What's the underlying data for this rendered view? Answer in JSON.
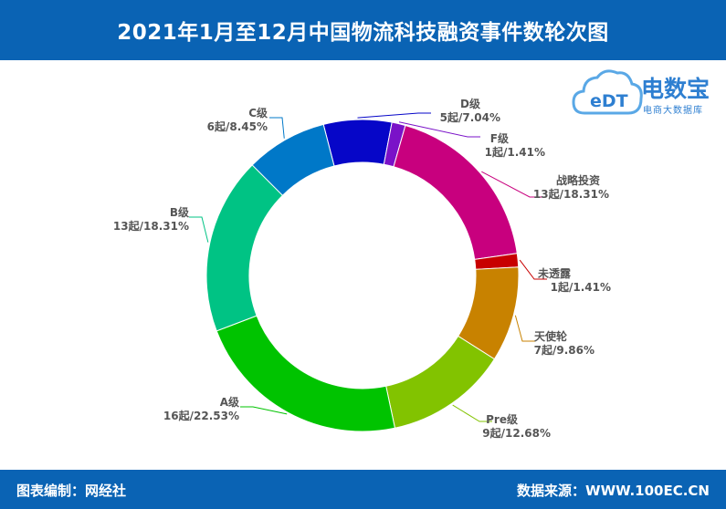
{
  "header": {
    "title": "2021年1月至12月中国物流科技融资事件数轮次图"
  },
  "footer": {
    "left": "图表编制：网经社",
    "right": "数据来源：WWW.100EC.CN"
  },
  "logo": {
    "mark": "eDT",
    "brand": "电数宝",
    "sub": "电商大数据库"
  },
  "chart_data": {
    "type": "pie",
    "style": "donut",
    "title": "2021年1月至12月中国物流科技融资事件数轮次图",
    "slices": [
      {
        "name": "D级",
        "value": 5,
        "label": "5起/7.04%",
        "color": "#0606c8"
      },
      {
        "name": "F级",
        "value": 1,
        "label": "1起/1.41%",
        "color": "#7a12c8"
      },
      {
        "name": "战略投资",
        "value": 13,
        "label": "13起/18.31%",
        "color": "#c8007e"
      },
      {
        "name": "未透露",
        "value": 1,
        "label": "1起/1.41%",
        "color": "#c80000"
      },
      {
        "name": "天使轮",
        "value": 7,
        "label": "7起/9.86%",
        "color": "#c88200"
      },
      {
        "name": "Pre级",
        "value": 9,
        "label": "9起/12.68%",
        "color": "#82c300"
      },
      {
        "name": "A级",
        "value": 16,
        "label": "16起/22.53%",
        "color": "#00c300"
      },
      {
        "name": "B级",
        "value": 13,
        "label": "13起/18.31%",
        "color": "#00c384"
      },
      {
        "name": "C级",
        "value": 6,
        "label": "6起/8.45%",
        "color": "#0078c8"
      }
    ]
  }
}
